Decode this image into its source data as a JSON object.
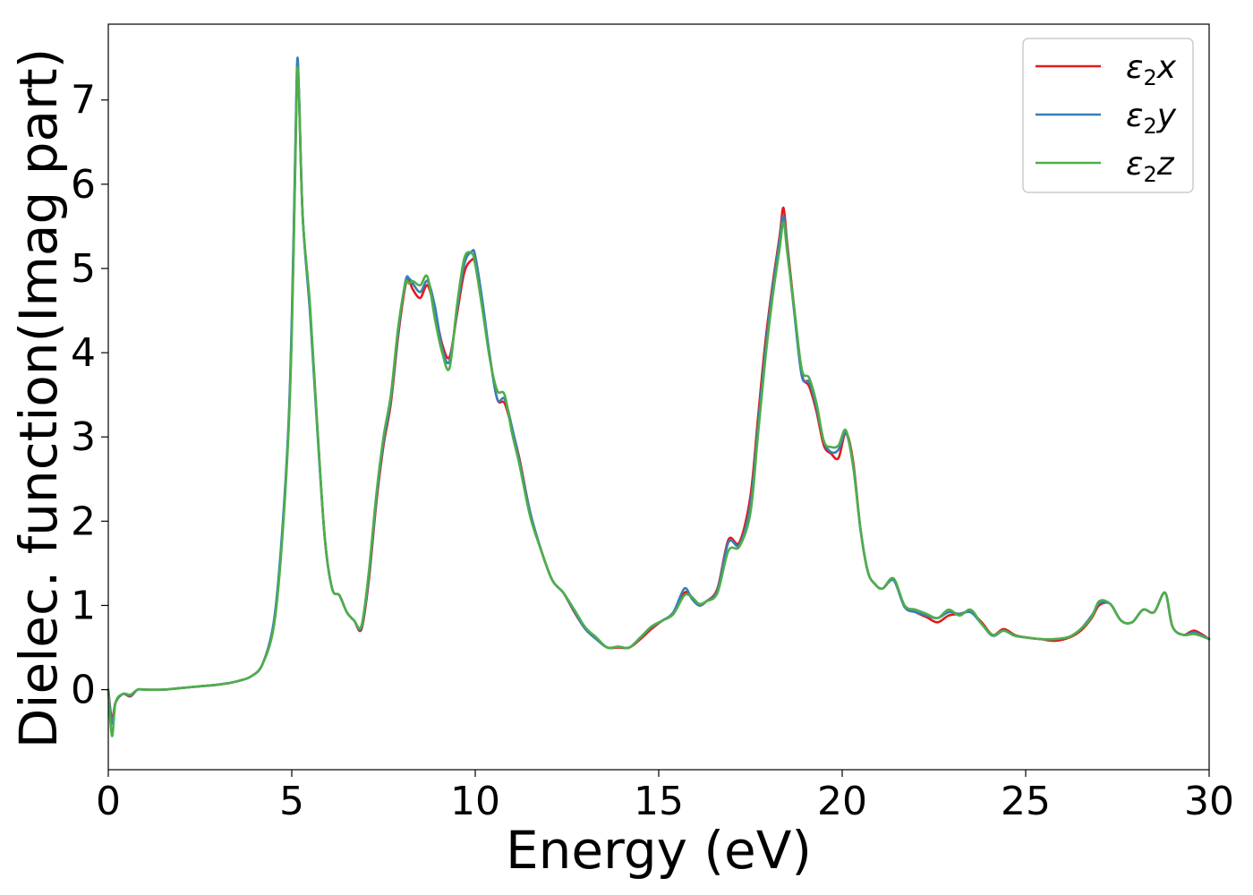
{
  "chart_data": {
    "type": "line",
    "title": "",
    "xlabel": "Energy (eV)",
    "ylabel": "Dielec. function(Imag part)",
    "xlim": [
      0,
      30
    ],
    "ylim": [
      -0.95,
      7.9
    ],
    "xticks": [
      0,
      5,
      10,
      15,
      20,
      25,
      30
    ],
    "xtick_labels": [
      "0",
      "5",
      "10",
      "15",
      "20",
      "25",
      "30"
    ],
    "yticks": [
      0,
      1,
      2,
      3,
      4,
      5,
      6,
      7
    ],
    "ytick_labels": [
      "0",
      "1",
      "2",
      "3",
      "4",
      "5",
      "6",
      "7"
    ],
    "grid": false,
    "legend_position": "top-right",
    "x": [
      0,
      0.1,
      0.2,
      0.4,
      0.6,
      0.8,
      1.0,
      1.5,
      2.0,
      2.5,
      3.0,
      3.3,
      3.6,
      3.9,
      4.2,
      4.5,
      4.7,
      4.9,
      5.0,
      5.1,
      5.15,
      5.2,
      5.3,
      5.5,
      5.7,
      5.9,
      6.1,
      6.3,
      6.5,
      6.7,
      6.9,
      7.1,
      7.3,
      7.5,
      7.7,
      7.9,
      8.1,
      8.2,
      8.3,
      8.5,
      8.7,
      8.9,
      9.1,
      9.3,
      9.5,
      9.7,
      9.9,
      10.0,
      10.2,
      10.4,
      10.6,
      10.8,
      11.0,
      11.2,
      11.5,
      11.8,
      12.1,
      12.4,
      12.7,
      13.0,
      13.3,
      13.6,
      13.9,
      14.2,
      14.5,
      14.8,
      15.1,
      15.4,
      15.7,
      15.9,
      16.1,
      16.3,
      16.6,
      16.9,
      17.2,
      17.5,
      17.7,
      17.9,
      18.1,
      18.3,
      18.4,
      18.5,
      18.7,
      18.9,
      19.1,
      19.3,
      19.5,
      19.7,
      19.9,
      20.1,
      20.3,
      20.5,
      20.7,
      20.9,
      21.1,
      21.4,
      21.7,
      22.0,
      22.3,
      22.6,
      22.9,
      23.2,
      23.5,
      23.8,
      24.1,
      24.4,
      24.7,
      25.0,
      25.4,
      25.8,
      26.2,
      26.5,
      26.8,
      27.0,
      27.3,
      27.6,
      27.9,
      28.2,
      28.5,
      28.8,
      29.0,
      29.3,
      29.6,
      30.0
    ],
    "series": [
      {
        "name": "ε₂x",
        "name_base": "ε",
        "name_sub": "2",
        "name_suffix": "x",
        "color": "#e31a1c",
        "values": [
          0.0,
          -0.35,
          -0.15,
          -0.05,
          -0.08,
          0.0,
          0.0,
          0.0,
          0.02,
          0.04,
          0.06,
          0.08,
          0.11,
          0.16,
          0.3,
          0.75,
          1.6,
          3.0,
          4.3,
          6.4,
          7.4,
          7.0,
          5.6,
          4.5,
          3.1,
          1.8,
          1.2,
          1.12,
          0.92,
          0.82,
          0.72,
          1.3,
          2.2,
          2.9,
          3.4,
          4.2,
          4.8,
          4.85,
          4.75,
          4.65,
          4.8,
          4.5,
          4.1,
          3.95,
          4.45,
          4.95,
          5.1,
          5.05,
          4.55,
          3.95,
          3.45,
          3.4,
          3.1,
          2.75,
          2.1,
          1.65,
          1.3,
          1.15,
          0.92,
          0.72,
          0.6,
          0.5,
          0.5,
          0.5,
          0.6,
          0.72,
          0.82,
          0.9,
          1.15,
          1.1,
          1.0,
          1.05,
          1.2,
          1.78,
          1.75,
          2.3,
          3.2,
          4.1,
          4.8,
          5.4,
          5.72,
          5.3,
          4.5,
          3.75,
          3.6,
          3.3,
          2.9,
          2.8,
          2.75,
          3.05,
          2.7,
          1.9,
          1.4,
          1.25,
          1.2,
          1.3,
          1.0,
          0.92,
          0.86,
          0.8,
          0.88,
          0.9,
          0.92,
          0.8,
          0.65,
          0.72,
          0.65,
          0.62,
          0.6,
          0.58,
          0.62,
          0.7,
          0.85,
          1.0,
          1.02,
          0.82,
          0.8,
          0.95,
          0.92,
          1.15,
          0.75,
          0.65,
          0.7,
          0.6
        ]
      },
      {
        "name": "ε₂y",
        "name_base": "ε",
        "name_sub": "2",
        "name_suffix": "y",
        "color": "#377eb8",
        "values": [
          0.0,
          -0.4,
          -0.15,
          -0.05,
          -0.07,
          0.0,
          0.0,
          0.0,
          0.02,
          0.04,
          0.06,
          0.08,
          0.11,
          0.16,
          0.3,
          0.78,
          1.65,
          3.05,
          4.4,
          6.5,
          7.48,
          7.05,
          5.6,
          4.45,
          3.05,
          1.8,
          1.2,
          1.12,
          0.92,
          0.82,
          0.74,
          1.35,
          2.25,
          2.95,
          3.45,
          4.25,
          4.85,
          4.88,
          4.82,
          4.72,
          4.85,
          4.55,
          4.05,
          3.9,
          4.5,
          5.05,
          5.2,
          5.15,
          4.6,
          3.95,
          3.45,
          3.45,
          3.12,
          2.72,
          2.1,
          1.65,
          1.3,
          1.15,
          0.93,
          0.72,
          0.6,
          0.5,
          0.51,
          0.5,
          0.62,
          0.74,
          0.82,
          0.92,
          1.2,
          1.08,
          1.0,
          1.05,
          1.18,
          1.75,
          1.72,
          2.2,
          3.1,
          4.0,
          4.75,
          5.35,
          5.62,
          5.25,
          4.45,
          3.72,
          3.65,
          3.35,
          2.95,
          2.82,
          2.85,
          3.05,
          2.65,
          1.9,
          1.4,
          1.25,
          1.2,
          1.3,
          0.98,
          0.92,
          0.88,
          0.85,
          0.92,
          0.9,
          0.92,
          0.78,
          0.64,
          0.7,
          0.64,
          0.62,
          0.6,
          0.6,
          0.63,
          0.72,
          0.88,
          1.02,
          1.02,
          0.82,
          0.8,
          0.95,
          0.92,
          1.15,
          0.75,
          0.65,
          0.68,
          0.6
        ]
      },
      {
        "name": "ε₂z",
        "name_base": "ε",
        "name_sub": "2",
        "name_suffix": "z",
        "color": "#4daf4a",
        "values": [
          0.0,
          -0.55,
          -0.15,
          -0.05,
          -0.06,
          0.0,
          0.0,
          0.0,
          0.02,
          0.04,
          0.06,
          0.08,
          0.11,
          0.16,
          0.3,
          0.72,
          1.55,
          2.95,
          4.2,
          6.3,
          7.35,
          7.0,
          5.6,
          4.55,
          3.1,
          1.8,
          1.2,
          1.12,
          0.92,
          0.82,
          0.76,
          1.4,
          2.3,
          3.0,
          3.5,
          4.3,
          4.82,
          4.82,
          4.85,
          4.8,
          4.9,
          4.4,
          4.0,
          3.82,
          4.55,
          5.12,
          5.18,
          5.05,
          4.5,
          3.92,
          3.55,
          3.5,
          3.05,
          2.68,
          2.05,
          1.65,
          1.3,
          1.15,
          0.95,
          0.74,
          0.62,
          0.5,
          0.51,
          0.5,
          0.62,
          0.75,
          0.82,
          0.9,
          1.12,
          1.1,
          1.02,
          1.05,
          1.15,
          1.65,
          1.7,
          2.1,
          3.0,
          3.9,
          4.65,
          5.25,
          5.55,
          5.2,
          4.5,
          3.8,
          3.7,
          3.4,
          2.95,
          2.88,
          2.9,
          3.08,
          2.65,
          1.9,
          1.4,
          1.25,
          1.2,
          1.32,
          1.0,
          0.95,
          0.9,
          0.85,
          0.95,
          0.88,
          0.95,
          0.78,
          0.65,
          0.7,
          0.64,
          0.62,
          0.6,
          0.6,
          0.63,
          0.72,
          0.86,
          1.05,
          1.02,
          0.82,
          0.8,
          0.95,
          0.92,
          1.15,
          0.75,
          0.65,
          0.66,
          0.6
        ]
      }
    ]
  }
}
